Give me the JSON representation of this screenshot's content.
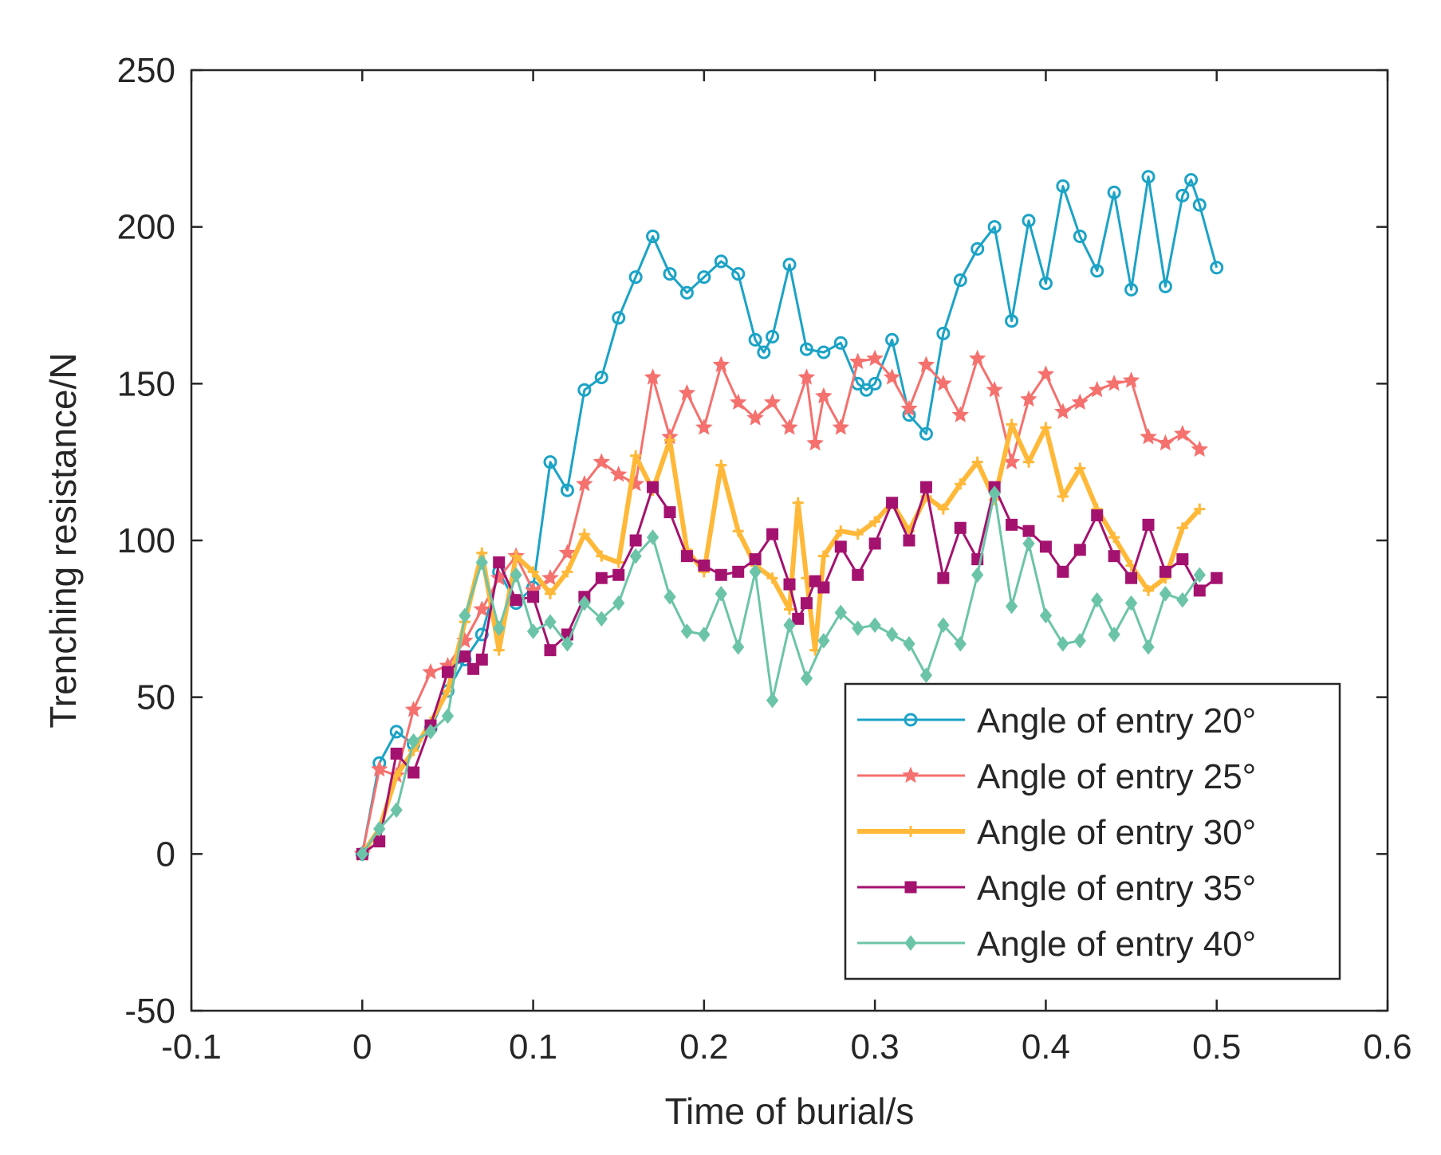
{
  "chart_data": {
    "type": "line",
    "title": "",
    "xlabel": "Time of burial/s",
    "ylabel": "Trenching resistance/N",
    "xlim": [
      -0.1,
      0.6
    ],
    "ylim": [
      -50,
      250
    ],
    "xticks": [
      -0.1,
      0,
      0.1,
      0.2,
      0.3,
      0.4,
      0.5,
      0.6
    ],
    "xtick_labels": [
      "-0.1",
      "0",
      "0.1",
      "0.2",
      "0.3",
      "0.4",
      "0.5",
      "0.6"
    ],
    "yticks": [
      -50,
      0,
      50,
      100,
      150,
      200,
      250
    ],
    "ytick_labels": [
      "-50",
      "0",
      "50",
      "100",
      "150",
      "200",
      "250"
    ],
    "grid": false,
    "legend_position": "bottom-right",
    "series": [
      {
        "name": "Angle of entry 20°",
        "color": "#1ba3c6",
        "marker": "circle",
        "x": [
          0,
          0.01,
          0.02,
          0.03,
          0.04,
          0.05,
          0.06,
          0.07,
          0.08,
          0.09,
          0.1,
          0.11,
          0.12,
          0.13,
          0.14,
          0.15,
          0.16,
          0.17,
          0.18,
          0.19,
          0.2,
          0.21,
          0.22,
          0.23,
          0.235,
          0.24,
          0.25,
          0.26,
          0.27,
          0.28,
          0.29,
          0.295,
          0.3,
          0.31,
          0.32,
          0.33,
          0.34,
          0.35,
          0.36,
          0.37,
          0.38,
          0.39,
          0.4,
          0.41,
          0.42,
          0.43,
          0.44,
          0.45,
          0.46,
          0.47,
          0.48,
          0.485,
          0.49,
          0.5
        ],
        "y": [
          0,
          29,
          39,
          35,
          40,
          52,
          62,
          70,
          90,
          80,
          85,
          125,
          116,
          148,
          152,
          171,
          184,
          197,
          185,
          179,
          184,
          189,
          185,
          164,
          160,
          165,
          188,
          161,
          160,
          163,
          150,
          148,
          150,
          164,
          140,
          134,
          166,
          183,
          193,
          200,
          170,
          202,
          182,
          213,
          197,
          186,
          211,
          180,
          216,
          181,
          210,
          215,
          207,
          187
        ]
      },
      {
        "name": "Angle of entry 25°",
        "color": "#f4716e",
        "marker": "star",
        "x": [
          0,
          0.01,
          0.02,
          0.03,
          0.04,
          0.05,
          0.06,
          0.07,
          0.08,
          0.09,
          0.1,
          0.11,
          0.12,
          0.13,
          0.14,
          0.15,
          0.16,
          0.17,
          0.18,
          0.19,
          0.2,
          0.21,
          0.22,
          0.23,
          0.24,
          0.25,
          0.26,
          0.265,
          0.27,
          0.28,
          0.29,
          0.3,
          0.31,
          0.32,
          0.33,
          0.34,
          0.35,
          0.36,
          0.37,
          0.38,
          0.39,
          0.4,
          0.41,
          0.42,
          0.43,
          0.44,
          0.45,
          0.46,
          0.47,
          0.48,
          0.49
        ],
        "y": [
          0,
          27,
          25,
          46,
          58,
          60,
          68,
          78,
          88,
          95,
          84,
          88,
          96,
          118,
          125,
          121,
          118,
          152,
          133,
          147,
          136,
          156,
          144,
          139,
          144,
          136,
          152,
          131,
          146,
          136,
          157,
          158,
          152,
          142,
          156,
          150,
          140,
          158,
          148,
          125,
          145,
          153,
          141,
          144,
          148,
          150,
          151,
          133,
          131,
          134,
          129
        ]
      },
      {
        "name": "Angle of entry 30°",
        "color": "#ffb838",
        "marker": "plus",
        "x": [
          0,
          0.01,
          0.02,
          0.03,
          0.04,
          0.05,
          0.06,
          0.07,
          0.08,
          0.09,
          0.1,
          0.11,
          0.12,
          0.13,
          0.14,
          0.15,
          0.16,
          0.17,
          0.18,
          0.19,
          0.2,
          0.21,
          0.22,
          0.23,
          0.24,
          0.25,
          0.255,
          0.26,
          0.265,
          0.27,
          0.28,
          0.29,
          0.3,
          0.31,
          0.32,
          0.33,
          0.34,
          0.35,
          0.36,
          0.37,
          0.38,
          0.39,
          0.4,
          0.41,
          0.42,
          0.43,
          0.44,
          0.45,
          0.46,
          0.47,
          0.48,
          0.49
        ],
        "y": [
          0,
          8,
          25,
          33,
          42,
          52,
          74,
          96,
          65,
          95,
          90,
          83,
          90,
          102,
          95,
          93,
          127,
          116,
          132,
          97,
          90,
          124,
          103,
          92,
          88,
          78,
          112,
          88,
          65,
          95,
          103,
          102,
          106,
          112,
          103,
          114,
          110,
          118,
          125,
          113,
          137,
          125,
          136,
          114,
          123,
          110,
          101,
          92,
          84,
          88,
          104,
          110
        ]
      },
      {
        "name": "Angle of entry 35°",
        "color": "#a4126f",
        "marker": "square",
        "x": [
          0,
          0.01,
          0.02,
          0.03,
          0.04,
          0.05,
          0.06,
          0.065,
          0.07,
          0.08,
          0.09,
          0.1,
          0.11,
          0.12,
          0.13,
          0.14,
          0.15,
          0.16,
          0.17,
          0.18,
          0.19,
          0.2,
          0.21,
          0.22,
          0.23,
          0.24,
          0.25,
          0.255,
          0.26,
          0.265,
          0.27,
          0.28,
          0.29,
          0.3,
          0.31,
          0.32,
          0.33,
          0.34,
          0.35,
          0.36,
          0.37,
          0.38,
          0.39,
          0.4,
          0.41,
          0.42,
          0.43,
          0.44,
          0.45,
          0.46,
          0.47,
          0.48,
          0.49,
          0.5
        ],
        "y": [
          0,
          4,
          32,
          26,
          41,
          58,
          63,
          59,
          62,
          93,
          81,
          82,
          65,
          70,
          82,
          88,
          89,
          100,
          117,
          109,
          95,
          92,
          89,
          90,
          94,
          102,
          86,
          75,
          80,
          87,
          85,
          98,
          89,
          99,
          112,
          100,
          117,
          88,
          104,
          94,
          117,
          105,
          103,
          98,
          90,
          97,
          108,
          95,
          88,
          105,
          90,
          94,
          84,
          88
        ]
      },
      {
        "name": "Angle of entry 40°",
        "color": "#6cc4a8",
        "marker": "diamond",
        "x": [
          0,
          0.01,
          0.02,
          0.03,
          0.04,
          0.05,
          0.06,
          0.07,
          0.08,
          0.09,
          0.1,
          0.11,
          0.12,
          0.13,
          0.14,
          0.15,
          0.16,
          0.17,
          0.18,
          0.19,
          0.2,
          0.21,
          0.22,
          0.23,
          0.24,
          0.25,
          0.26,
          0.27,
          0.28,
          0.29,
          0.3,
          0.31,
          0.32,
          0.33,
          0.34,
          0.35,
          0.36,
          0.37,
          0.38,
          0.39,
          0.4,
          0.41,
          0.42,
          0.43,
          0.44,
          0.45,
          0.46,
          0.47,
          0.48,
          0.49
        ],
        "y": [
          0,
          8,
          14,
          36,
          39,
          44,
          76,
          93,
          72,
          89,
          71,
          74,
          67,
          80,
          75,
          80,
          95,
          101,
          82,
          71,
          70,
          83,
          66,
          90,
          49,
          73,
          56,
          68,
          77,
          72,
          73,
          70,
          67,
          57,
          73,
          67,
          89,
          115,
          79,
          99,
          76,
          67,
          68,
          81,
          70,
          80,
          66,
          83,
          81,
          89
        ]
      }
    ]
  }
}
